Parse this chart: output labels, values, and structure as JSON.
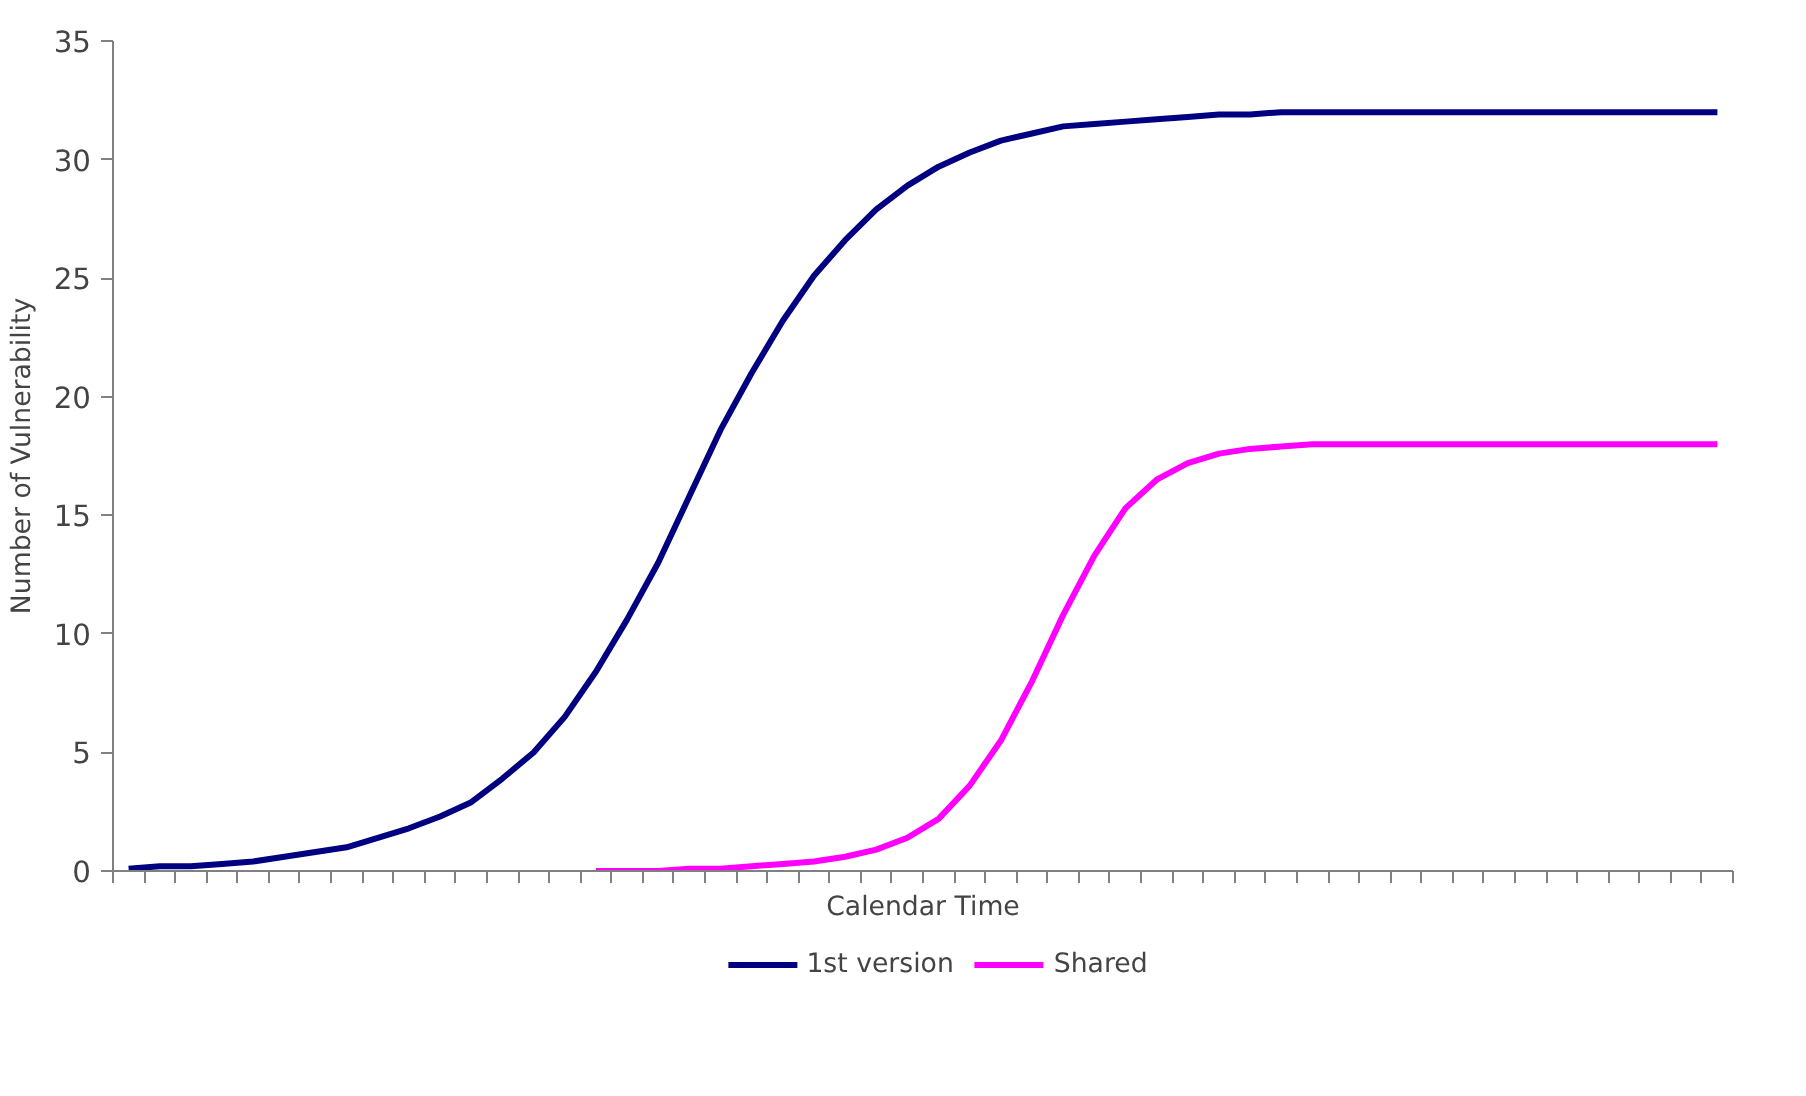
{
  "chart_data": {
    "type": "line",
    "xlabel": "Calendar Time",
    "ylabel": "Number of Vulnerability",
    "categories": [
      null,
      null,
      null,
      null,
      null,
      null,
      null,
      null,
      null,
      null,
      null,
      null,
      null,
      null,
      null,
      null,
      null,
      null,
      null,
      null,
      null,
      null,
      null,
      null,
      null,
      null,
      null,
      null,
      null,
      null,
      null,
      null,
      null,
      null,
      null,
      null,
      null,
      null,
      null,
      null,
      null,
      null,
      null,
      null,
      null,
      null,
      null,
      null,
      null,
      null,
      null,
      null
    ],
    "series": [
      {
        "name": "1st version",
        "color": "#000080",
        "values": [
          0.1,
          0.2,
          0.2,
          0.3,
          0.4,
          0.6,
          0.8,
          1.0,
          1.4,
          1.8,
          2.3,
          2.9,
          3.9,
          5.0,
          6.5,
          8.4,
          10.6,
          13.0,
          15.8,
          18.6,
          21.0,
          23.2,
          25.1,
          26.6,
          27.9,
          28.9,
          29.7,
          30.3,
          30.8,
          31.1,
          31.4,
          31.5,
          31.6,
          31.7,
          31.8,
          31.9,
          31.9,
          32,
          32,
          32,
          32,
          32,
          32,
          32,
          32,
          32,
          32,
          32,
          32,
          32,
          32,
          32
        ]
      },
      {
        "name": "Shared",
        "color": "#ff00ff",
        "values": [
          null,
          null,
          null,
          null,
          null,
          null,
          null,
          null,
          null,
          null,
          null,
          null,
          null,
          null,
          null,
          0,
          0,
          0,
          0.1,
          0.1,
          0.2,
          0.3,
          0.4,
          0.6,
          0.9,
          1.4,
          2.2,
          3.6,
          5.5,
          8.0,
          10.8,
          13.3,
          15.3,
          16.5,
          17.2,
          17.6,
          17.8,
          17.9,
          18,
          18,
          18,
          18,
          18,
          18,
          18,
          18,
          18,
          18,
          18,
          18,
          18,
          18
        ]
      }
    ],
    "ylim": [
      0,
      35
    ],
    "yticks": [
      0,
      5,
      10,
      15,
      20,
      25,
      30,
      35
    ],
    "grid": false,
    "legend": "bottom",
    "marker": "none",
    "line_style": "solid"
  }
}
